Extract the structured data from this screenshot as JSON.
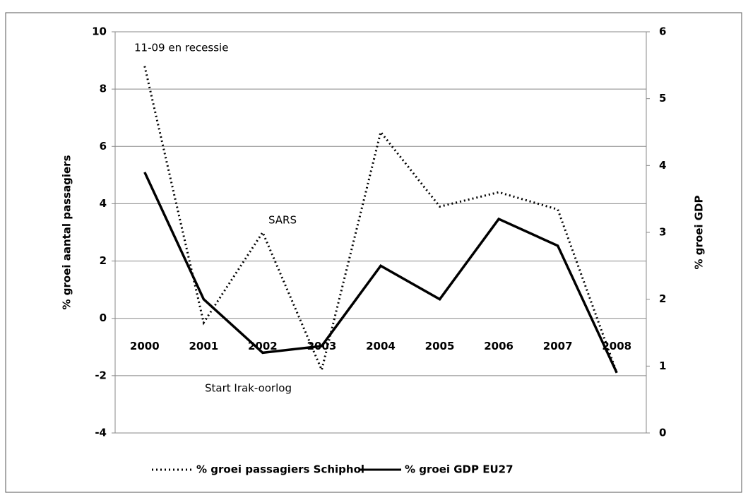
{
  "chart_data": {
    "type": "line",
    "categories": [
      "2000",
      "2001",
      "2002",
      "2003",
      "2004",
      "2005",
      "2006",
      "2007",
      "2008"
    ],
    "series": [
      {
        "name": "% groei passagiers Schiphol",
        "color": "#000000",
        "line_style": "dotted",
        "axis": "y",
        "values": [
          8.8,
          -0.15,
          3.0,
          -1.8,
          6.5,
          3.9,
          4.4,
          3.8,
          -1.9
        ]
      },
      {
        "name": "% groei GDP EU27",
        "color": "#000000",
        "line_style": "solid",
        "axis": "y2",
        "values": [
          3.9,
          2.0,
          1.2,
          1.3,
          2.5,
          2.0,
          3.2,
          2.8,
          0.9
        ]
      }
    ],
    "ylabel": "% groei aantal passagiers",
    "y2label": "% groei GDP",
    "ylim": [
      -4,
      10
    ],
    "yticks": [
      -4,
      -2,
      0,
      2,
      4,
      6,
      8,
      10
    ],
    "y2lim": [
      0,
      6
    ],
    "y2ticks": [
      0,
      1,
      2,
      3,
      4,
      5,
      6
    ],
    "annotations": [
      "11-09 en recessie",
      "SARS",
      "Start Irak-oorlog"
    ],
    "grid": true,
    "legend": "bottom"
  }
}
